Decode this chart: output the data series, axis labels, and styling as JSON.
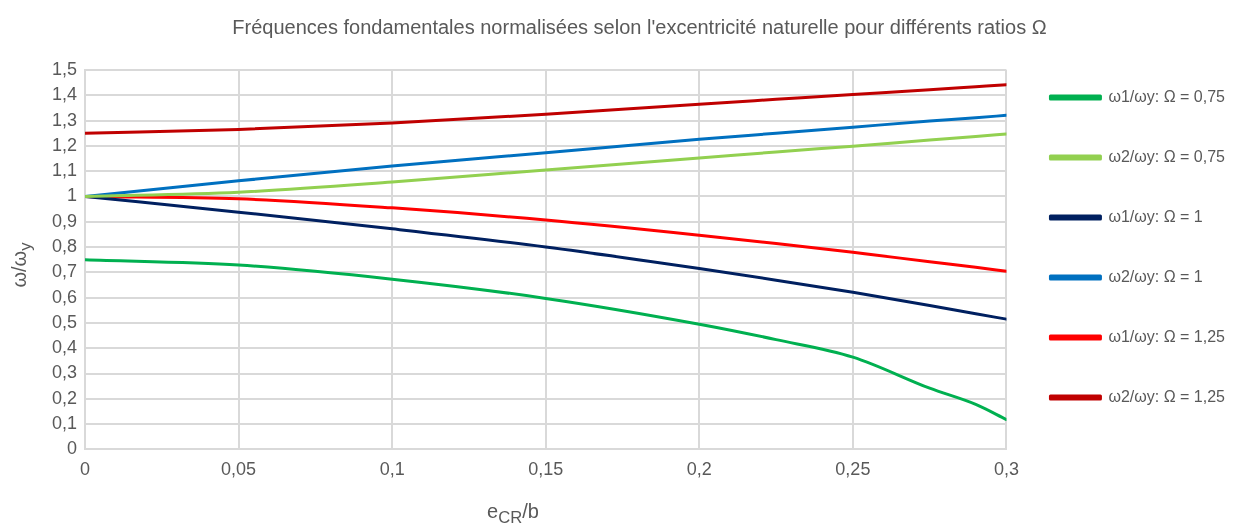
{
  "chart_data": {
    "type": "line",
    "title": "Fréquences fondamentales normalisées selon l'excentricité naturelle pour différents ratios Ω",
    "xlabel": "e$_{CR}$/b",
    "ylabel": "ω/ω$_{y}$",
    "x": [
      0,
      0.05,
      0.1,
      0.15,
      0.2,
      0.225,
      0.25,
      0.275,
      0.29,
      0.3
    ],
    "series": [
      {
        "name": "ω1/ωy: Ω = 0,75",
        "color": "#00b050",
        "values": [
          0.75,
          0.729,
          0.673,
          0.597,
          0.495,
          0.434,
          0.365,
          0.242,
          0.178,
          0.118
        ]
      },
      {
        "name": "ω2/ωy: Ω = 0,75",
        "color": "#92d050",
        "values": [
          1,
          1.017,
          1.057,
          1.105,
          1.152,
          1.176,
          1.199,
          1.223,
          1.237,
          1.247
        ]
      },
      {
        "name": "ω1/ωy: Ω = 1",
        "color": "#002060",
        "values": [
          1,
          0.938,
          0.872,
          0.8,
          0.715,
          0.669,
          0.621,
          0.569,
          0.536,
          0.515
        ]
      },
      {
        "name": "ω2/ωy: Ω = 1",
        "color": "#0070c0",
        "values": [
          1,
          1.062,
          1.12,
          1.173,
          1.226,
          1.25,
          1.274,
          1.298,
          1.311,
          1.321
        ]
      },
      {
        "name": "ω1/ωy: Ω = 1,25",
        "color": "#ff0000",
        "values": [
          1,
          0.991,
          0.955,
          0.907,
          0.847,
          0.814,
          0.779,
          0.742,
          0.72,
          0.704
        ]
      },
      {
        "name": "ω2/ωy: Ω = 1,25",
        "color": "#c00000",
        "values": [
          1.25,
          1.265,
          1.29,
          1.325,
          1.365,
          1.384,
          1.403,
          1.422,
          1.434,
          1.442
        ]
      }
    ],
    "xlim": [
      0,
      0.3
    ],
    "xticks": [
      0,
      {
        "value": 0.05,
        "label": "0,05"
      },
      {
        "value": 0.1,
        "label": "0,1"
      },
      {
        "value": 0.15,
        "label": "0,15"
      },
      {
        "value": 0.2,
        "label": "0,2"
      },
      {
        "value": 0.25,
        "label": "0,25"
      },
      {
        "value": 0.3,
        "label": "0,3"
      }
    ],
    "ylim": [
      0,
      1.5
    ],
    "yticks": [
      0,
      {
        "value": 0.1,
        "label": "0,1"
      },
      {
        "value": 0.2,
        "label": "0,2"
      },
      {
        "value": 0.3,
        "label": "0,3"
      },
      {
        "value": 0.4,
        "label": "0,4"
      },
      {
        "value": 0.5,
        "label": "0,5"
      },
      {
        "value": 0.6,
        "label": "0,6"
      },
      {
        "value": 0.7,
        "label": "0,7"
      },
      {
        "value": 0.8,
        "label": "0,8"
      },
      {
        "value": 0.9,
        "label": "0,9"
      },
      1,
      {
        "value": 1.1,
        "label": "1,1"
      },
      {
        "value": 1.2,
        "label": "1,2"
      },
      {
        "value": 1.3,
        "label": "1,3"
      },
      {
        "value": 1.4,
        "label": "1,4"
      },
      {
        "value": 1.5,
        "label": "1,5"
      }
    ],
    "grid": true,
    "legend": "right",
    "marker": "none",
    "line_style": "solid"
  }
}
